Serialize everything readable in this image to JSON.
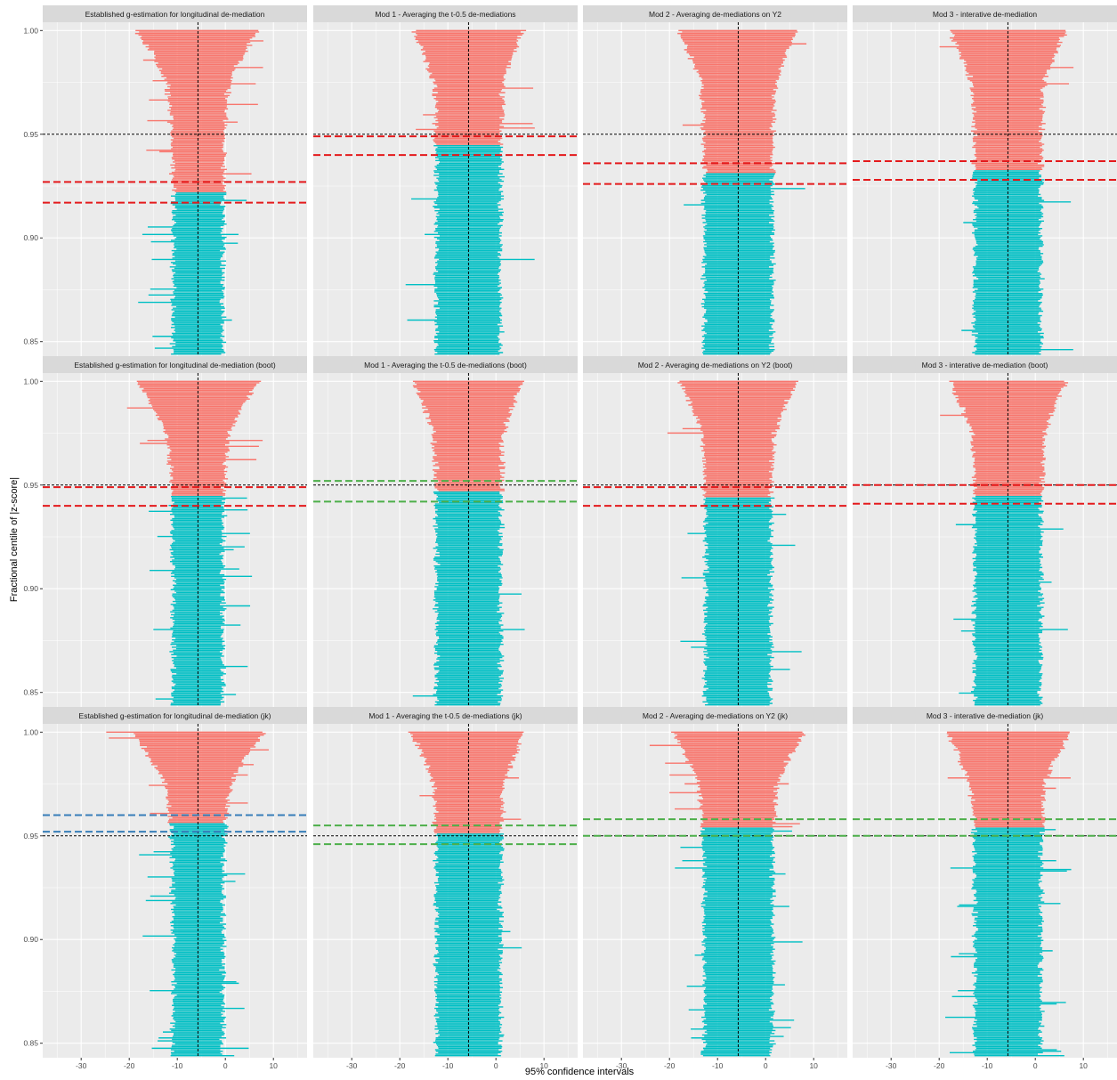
{
  "colors": {
    "upper": "#F8766D",
    "lower": "#00BFC4",
    "panel_bg": "#EBEBEB",
    "strip_bg": "#D9D9D9",
    "grid": "#FFFFFF",
    "ref_line": "#000000",
    "red": "#E41A1C",
    "green": "#4DAF4A",
    "blue": "#377EB8"
  },
  "chart_data": {
    "type": "faceted-caterpillar",
    "xlabel": "95% confidence intervals",
    "ylabel": "Fractional centile of |z-score|",
    "xlim": [
      -38,
      17
    ],
    "ylim": [
      0.843,
      1.004
    ],
    "x_ticks": [
      -30,
      -20,
      -10,
      0,
      10
    ],
    "x_tick_labels": [
      "-30",
      "-20",
      "-10",
      "0",
      "10"
    ],
    "y_ticks": [
      0.85,
      0.9,
      0.95,
      1.0
    ],
    "y_tick_labels": [
      "0.85",
      "0.90",
      "0.95",
      "1.00"
    ],
    "reference_x": -5.7,
    "reference_y": 0.95,
    "interval_count": 220,
    "panels": [
      {
        "title": "Established g-estimation for longitudinal de-mediation",
        "row": 0,
        "col": 0,
        "center": -5.7,
        "half_width_min": 5.2,
        "half_width_max": 10.6,
        "switch_centile": 0.922,
        "outlier_prob": 0.05,
        "seed": 11,
        "h_lines": [
          {
            "y": 0.927,
            "color": "red"
          },
          {
            "y": 0.917,
            "color": "red"
          }
        ]
      },
      {
        "title": "Mod 1 - Averaging the t-0.5 de-mediations",
        "row": 0,
        "col": 1,
        "center": -5.7,
        "half_width_min": 6.7,
        "half_width_max": 8.8,
        "switch_centile": 0.945,
        "outlier_prob": 0.01,
        "seed": 23,
        "h_lines": [
          {
            "y": 0.949,
            "color": "red"
          },
          {
            "y": 0.94,
            "color": "red"
          }
        ]
      },
      {
        "title": "Mod 2 - Averaging de-mediations on Y2",
        "row": 0,
        "col": 2,
        "center": -5.7,
        "half_width_min": 7.1,
        "half_width_max": 9.8,
        "switch_centile": 0.931,
        "outlier_prob": 0.015,
        "seed": 37,
        "h_lines": [
          {
            "y": 0.936,
            "color": "red"
          },
          {
            "y": 0.926,
            "color": "red"
          }
        ]
      },
      {
        "title": "Mod 3 - interative de-mediation",
        "row": 0,
        "col": 3,
        "center": -5.7,
        "half_width_min": 6.9,
        "half_width_max": 9.5,
        "switch_centile": 0.933,
        "outlier_prob": 0.015,
        "seed": 41,
        "h_lines": [
          {
            "y": 0.937,
            "color": "red"
          },
          {
            "y": 0.928,
            "color": "red"
          }
        ]
      },
      {
        "title": "Established g-estimation for longitudinal de-mediation (boot)",
        "row": 1,
        "col": 0,
        "center": -5.7,
        "half_width_min": 5.2,
        "half_width_max": 10.6,
        "switch_centile": 0.945,
        "outlier_prob": 0.05,
        "seed": 53,
        "h_lines": [
          {
            "y": 0.949,
            "color": "red"
          },
          {
            "y": 0.94,
            "color": "red"
          }
        ]
      },
      {
        "title": "Mod 1 - Averaging the t-0.5 de-mediations (boot)",
        "row": 1,
        "col": 1,
        "center": -5.7,
        "half_width_min": 6.7,
        "half_width_max": 8.8,
        "switch_centile": 0.947,
        "outlier_prob": 0.01,
        "seed": 67,
        "h_lines": [
          {
            "y": 0.952,
            "color": "green"
          },
          {
            "y": 0.942,
            "color": "green"
          }
        ]
      },
      {
        "title": "Mod 2 - Averaging de-mediations on Y2 (boot)",
        "row": 1,
        "col": 2,
        "center": -5.7,
        "half_width_min": 6.8,
        "half_width_max": 9.8,
        "switch_centile": 0.944,
        "outlier_prob": 0.03,
        "seed": 71,
        "h_lines": [
          {
            "y": 0.949,
            "color": "red"
          },
          {
            "y": 0.94,
            "color": "red"
          }
        ]
      },
      {
        "title": "Mod 3 - interative de-mediation (boot)",
        "row": 1,
        "col": 3,
        "center": -5.7,
        "half_width_min": 6.9,
        "half_width_max": 9.5,
        "switch_centile": 0.945,
        "outlier_prob": 0.03,
        "seed": 83,
        "h_lines": [
          {
            "y": 0.95,
            "color": "red"
          },
          {
            "y": 0.941,
            "color": "red"
          }
        ]
      },
      {
        "title": "Established g-estimation for longitudinal de-mediation (jk)",
        "row": 2,
        "col": 0,
        "center": -5.7,
        "half_width_min": 5.2,
        "half_width_max": 12.0,
        "switch_centile": 0.956,
        "outlier_prob": 0.07,
        "seed": 97,
        "h_lines": [
          {
            "y": 0.96,
            "color": "blue"
          },
          {
            "y": 0.952,
            "color": "blue"
          }
        ]
      },
      {
        "title": "Mod 1 - Averaging the t-0.5 de-mediations (jk)",
        "row": 2,
        "col": 1,
        "center": -5.7,
        "half_width_min": 6.7,
        "half_width_max": 9.2,
        "switch_centile": 0.951,
        "outlier_prob": 0.015,
        "seed": 101,
        "h_lines": [
          {
            "y": 0.955,
            "color": "green"
          },
          {
            "y": 0.946,
            "color": "green"
          }
        ]
      },
      {
        "title": "Mod 2 - Averaging de-mediations on Y2 (jk)",
        "row": 2,
        "col": 2,
        "center": -5.7,
        "half_width_min": 7.1,
        "half_width_max": 11.5,
        "switch_centile": 0.954,
        "outlier_prob": 0.06,
        "seed": 113,
        "h_lines": [
          {
            "y": 0.958,
            "color": "green"
          },
          {
            "y": 0.95,
            "color": "green"
          }
        ]
      },
      {
        "title": "Mod 3 - interative de-mediation (jk)",
        "row": 2,
        "col": 3,
        "center": -5.7,
        "half_width_min": 6.9,
        "half_width_max": 10.5,
        "switch_centile": 0.954,
        "outlier_prob": 0.05,
        "seed": 127,
        "h_lines": [
          {
            "y": 0.958,
            "color": "green"
          },
          {
            "y": 0.95,
            "color": "green"
          }
        ]
      }
    ]
  }
}
